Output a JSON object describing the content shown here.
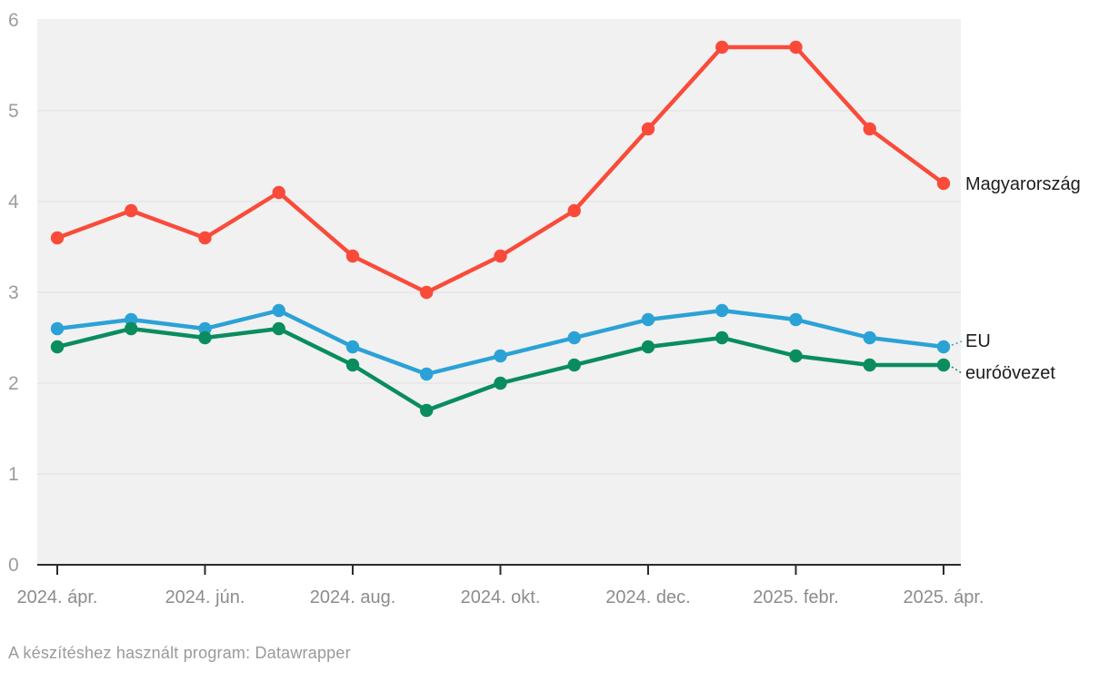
{
  "chart_data": {
    "type": "line",
    "x": [
      "2024-04",
      "2024-05",
      "2024-06",
      "2024-07",
      "2024-08",
      "2024-09",
      "2024-10",
      "2024-11",
      "2024-12",
      "2025-01",
      "2025-02",
      "2025-03",
      "2025-04"
    ],
    "x_tick_labels": [
      "2024. ápr.",
      "2024. jún.",
      "2024. aug.",
      "2024. okt.",
      "2024. dec.",
      "2025. febr.",
      "2025. ápr."
    ],
    "x_tick_indices": [
      0,
      2,
      4,
      6,
      8,
      10,
      12
    ],
    "series": [
      {
        "name": "Magyarország",
        "color": "#fa4b3a",
        "values": [
          3.6,
          3.9,
          3.6,
          4.1,
          3.4,
          3.0,
          3.4,
          3.9,
          4.8,
          5.7,
          5.7,
          4.8,
          4.2
        ]
      },
      {
        "name": "EU",
        "color": "#2ba2d6",
        "values": [
          2.6,
          2.7,
          2.6,
          2.8,
          2.4,
          2.1,
          2.3,
          2.5,
          2.7,
          2.8,
          2.7,
          2.5,
          2.4
        ]
      },
      {
        "name": "euróövezet",
        "color": "#0a8d5e",
        "values": [
          2.4,
          2.6,
          2.5,
          2.6,
          2.2,
          1.7,
          2.0,
          2.2,
          2.4,
          2.5,
          2.3,
          2.2,
          2.2
        ]
      }
    ],
    "title": "",
    "xlabel": "",
    "ylabel": "",
    "ylim": [
      0,
      6
    ],
    "yticks": [
      0,
      1,
      2,
      3,
      4,
      5,
      6
    ],
    "grid": true,
    "legend_position": "direct-labels-right"
  },
  "colors": {
    "plot_background": "#f1f1f1",
    "gridline": "#e0e0e0",
    "axis_line": "#2b2b2b",
    "y_tick_label": "#9c9c9c",
    "x_tick_label": "#8c8c8c",
    "series_label_text": "#1d1d1d",
    "footer_text": "#9a9a9a"
  },
  "footer": {
    "text": "A készítéshez használt program: Datawrapper"
  }
}
